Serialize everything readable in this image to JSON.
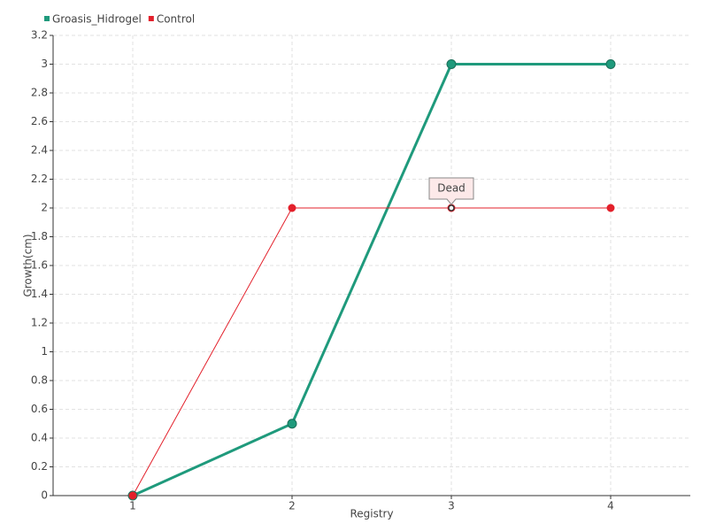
{
  "chart_data": {
    "type": "line",
    "x": [
      1,
      2,
      3,
      4
    ],
    "xlim": [
      0.5,
      4.5
    ],
    "xticks": [
      1,
      2,
      3,
      4
    ],
    "ylim": [
      0,
      3.2
    ],
    "yticks": [
      0,
      0.2,
      0.4,
      0.6,
      0.8,
      1,
      1.2,
      1.4,
      1.6,
      1.8,
      2,
      2.2,
      2.4,
      2.6,
      2.8,
      3,
      3.2
    ],
    "x_label": "Registry",
    "y_label": "Growth(cm)",
    "grid": true,
    "legend": "top-left",
    "series": [
      {
        "name": "Groasis_Hidrogel",
        "color": "#1f9a7c",
        "values": [
          0,
          0.5,
          3,
          3
        ]
      },
      {
        "name": "Control",
        "color": "#e3202b",
        "values": [
          0,
          2,
          2,
          2
        ]
      }
    ],
    "annotations": [
      {
        "text": "Dead",
        "x": 3,
        "y": 2
      }
    ]
  }
}
